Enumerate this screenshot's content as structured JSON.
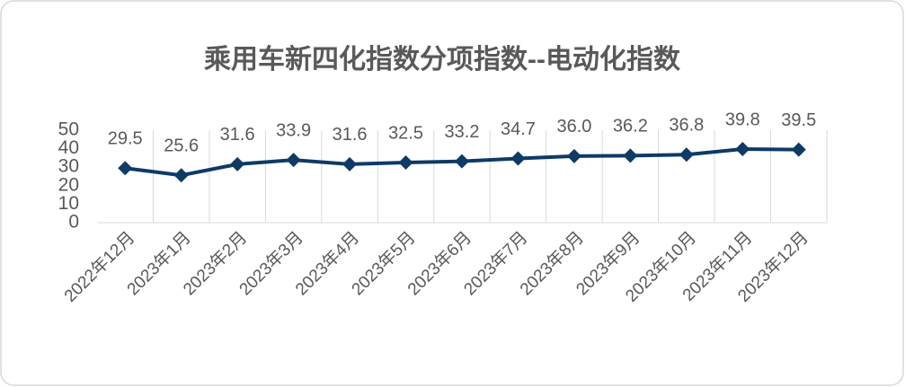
{
  "chart_data": {
    "type": "line",
    "title": "乘用车新四化指数分项指数--电动化指数",
    "categories": [
      "2022年12月",
      "2023年1月",
      "2023年2月",
      "2023年3月",
      "2023年4月",
      "2023年5月",
      "2023年6月",
      "2023年7月",
      "2023年8月",
      "2023年9月",
      "2023年10月",
      "2023年11月",
      "2023年12月"
    ],
    "values": [
      29.5,
      25.6,
      31.6,
      33.9,
      31.6,
      32.5,
      33.2,
      34.7,
      36,
      36.2,
      36.8,
      39.8,
      39.5
    ],
    "value_labels": [
      "29.5",
      "25.6",
      "31.6",
      "33.9",
      "31.6",
      "32.5",
      "33.2",
      "34.7",
      "36.0",
      "36.2",
      "36.8",
      "39.8",
      "39.5"
    ],
    "color": "#0e3a66",
    "ylim": [
      0,
      50
    ],
    "yticks": [
      0,
      10,
      20,
      30,
      40,
      50
    ],
    "xgrid": true
  }
}
